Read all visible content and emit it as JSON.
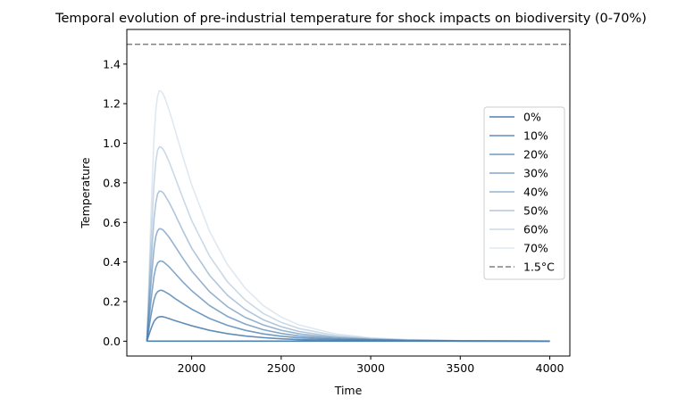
{
  "chart_data": {
    "type": "line",
    "title": "Temporal evolution of pre-industrial temperature for shock impacts on biodiversity (0-70%)",
    "xlabel": "Time",
    "ylabel": "Temperature",
    "xlim": [
      1638,
      4112
    ],
    "ylim": [
      -0.075,
      1.575
    ],
    "xticks": [
      2000,
      2500,
      3000,
      3500,
      4000
    ],
    "yticks": [
      0.0,
      0.2,
      0.4,
      0.6,
      0.8,
      1.0,
      1.2,
      1.4
    ],
    "xtick_labels": [
      "2000",
      "2500",
      "3000",
      "3500",
      "4000"
    ],
    "ytick_labels": [
      "0.0",
      "0.2",
      "0.4",
      "0.6",
      "0.8",
      "1.0",
      "1.2",
      "1.4"
    ],
    "grid": false,
    "legend_position": "center-right",
    "x": [
      1750,
      1760,
      1770,
      1780,
      1790,
      1800,
      1810,
      1820,
      1830,
      1840,
      1850,
      1875,
      1900,
      1950,
      2000,
      2100,
      2200,
      2300,
      2400,
      2500,
      2600,
      2800,
      3000,
      3200,
      3500,
      4000
    ],
    "series": [
      {
        "name": "0%",
        "color": "#4f81b0",
        "opacity": 1.0,
        "values": [
          0,
          0,
          0,
          0,
          0,
          0,
          0,
          0,
          0,
          0,
          0,
          0,
          0,
          0,
          0,
          0,
          0,
          0,
          0,
          0,
          0,
          0,
          0,
          0,
          0,
          0
        ]
      },
      {
        "name": "10%",
        "color": "#4f81b0",
        "opacity": 0.9,
        "values": [
          0,
          0.028,
          0.055,
          0.08,
          0.1,
          0.112,
          0.12,
          0.123,
          0.124,
          0.123,
          0.121,
          0.114,
          0.106,
          0.092,
          0.078,
          0.055,
          0.038,
          0.026,
          0.018,
          0.012,
          0.008,
          0.004,
          0.002,
          0.001,
          0.0004,
          0.0001
        ]
      },
      {
        "name": "20%",
        "color": "#4f81b0",
        "opacity": 0.8,
        "values": [
          0,
          0.058,
          0.115,
          0.168,
          0.21,
          0.237,
          0.25,
          0.256,
          0.257,
          0.255,
          0.25,
          0.237,
          0.22,
          0.19,
          0.162,
          0.115,
          0.08,
          0.055,
          0.037,
          0.025,
          0.017,
          0.008,
          0.004,
          0.002,
          0.0008,
          0.0002
        ]
      },
      {
        "name": "30%",
        "color": "#4f81b0",
        "opacity": 0.7,
        "values": [
          0,
          0.09,
          0.18,
          0.26,
          0.33,
          0.372,
          0.395,
          0.404,
          0.405,
          0.402,
          0.395,
          0.375,
          0.35,
          0.3,
          0.255,
          0.18,
          0.125,
          0.086,
          0.058,
          0.039,
          0.026,
          0.012,
          0.006,
          0.003,
          0.001,
          0.0003
        ]
      },
      {
        "name": "40%",
        "color": "#4f81b0",
        "opacity": 0.6,
        "values": [
          0,
          0.13,
          0.26,
          0.37,
          0.47,
          0.53,
          0.558,
          0.568,
          0.567,
          0.562,
          0.552,
          0.524,
          0.49,
          0.42,
          0.355,
          0.25,
          0.174,
          0.12,
          0.082,
          0.055,
          0.037,
          0.017,
          0.008,
          0.004,
          0.0015,
          0.0004
        ]
      },
      {
        "name": "50%",
        "color": "#4f81b0",
        "opacity": 0.45,
        "values": [
          0,
          0.17,
          0.34,
          0.49,
          0.62,
          0.7,
          0.745,
          0.758,
          0.757,
          0.75,
          0.738,
          0.7,
          0.655,
          0.56,
          0.47,
          0.333,
          0.232,
          0.16,
          0.108,
          0.073,
          0.049,
          0.022,
          0.01,
          0.005,
          0.002,
          0.0005
        ]
      },
      {
        "name": "60%",
        "color": "#4f81b0",
        "opacity": 0.3,
        "values": [
          0,
          0.22,
          0.44,
          0.63,
          0.8,
          0.91,
          0.965,
          0.982,
          0.98,
          0.97,
          0.955,
          0.905,
          0.845,
          0.725,
          0.61,
          0.43,
          0.3,
          0.207,
          0.14,
          0.095,
          0.064,
          0.029,
          0.013,
          0.006,
          0.002,
          0.0006
        ]
      },
      {
        "name": "70%",
        "color": "#4f81b0",
        "opacity": 0.18,
        "values": [
          0,
          0.28,
          0.56,
          0.81,
          1.03,
          1.17,
          1.24,
          1.265,
          1.262,
          1.25,
          1.23,
          1.165,
          1.09,
          0.935,
          0.79,
          0.555,
          0.387,
          0.267,
          0.18,
          0.122,
          0.082,
          0.037,
          0.017,
          0.008,
          0.003,
          0.0008
        ]
      }
    ],
    "reference_line": {
      "name": "1.5°C",
      "y": 1.5,
      "color": "#808080",
      "style": "dashed"
    }
  }
}
